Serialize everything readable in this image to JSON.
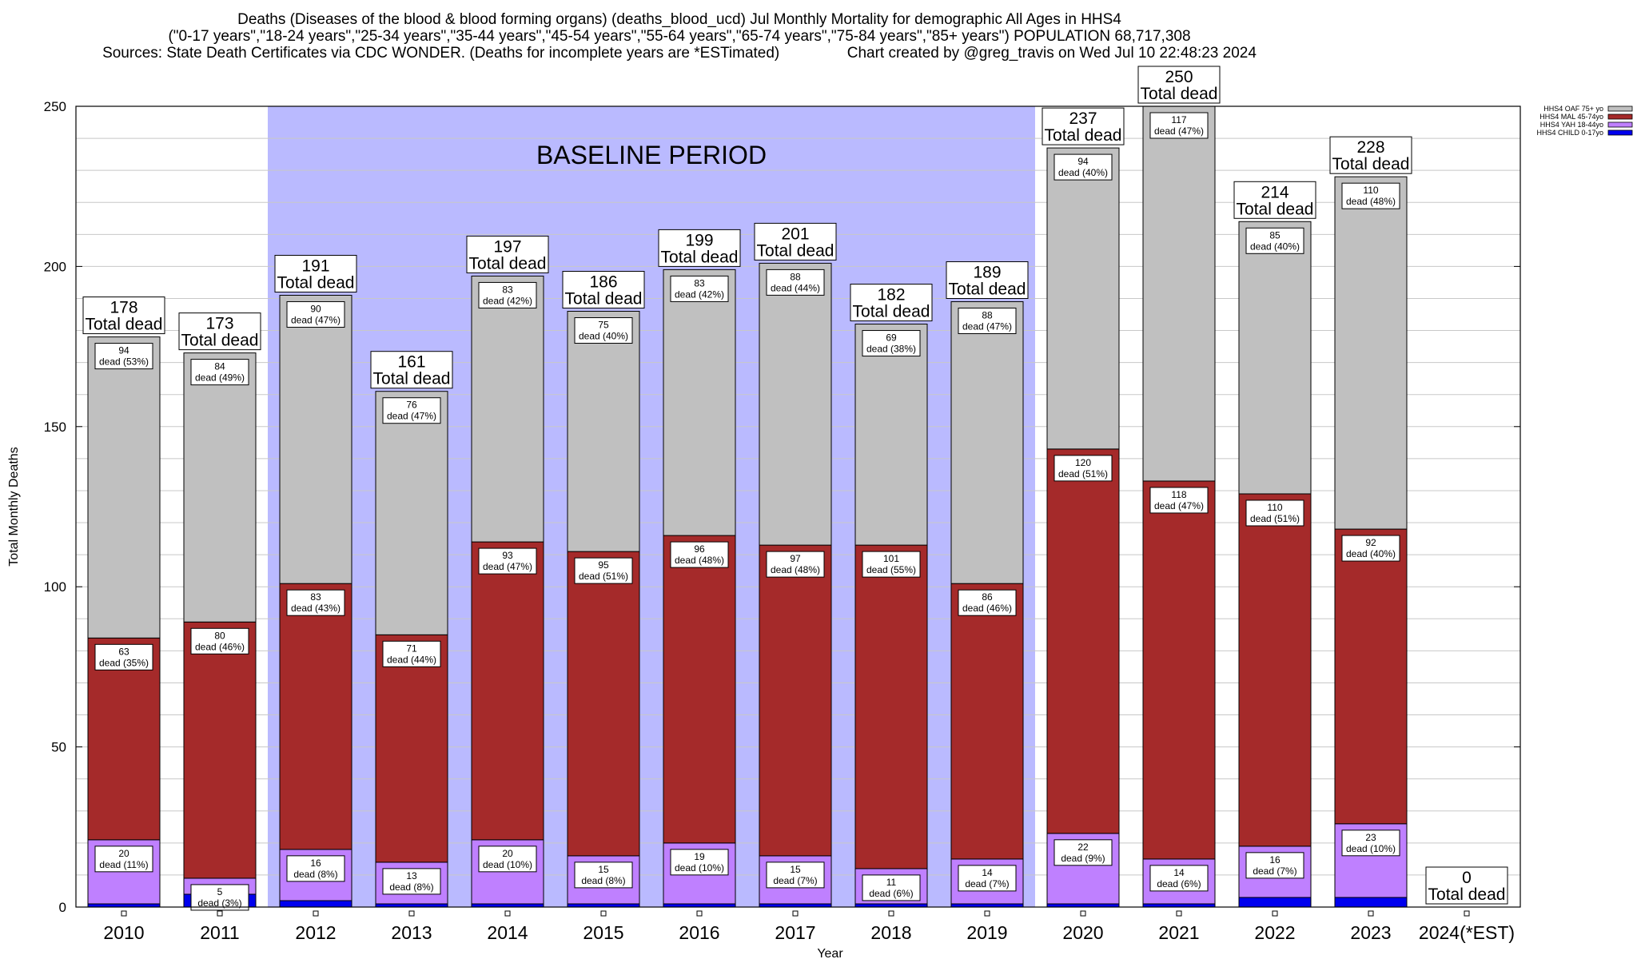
{
  "title_lines": [
    "Deaths (Diseases of the blood & blood forming organs) (deaths_blood_ucd) Jul Monthly Mortality for demographic All Ages in HHS4",
    "(\"0-17 years\",\"18-24 years\",\"25-34 years\",\"35-44 years\",\"45-54 years\",\"55-64 years\",\"65-74 years\",\"75-84 years\",\"85+ years\") POPULATION 68,717,308",
    "Sources: State Death Certificates via CDC WONDER. (Deaths for incomplete years are *ESTimated)                Chart created by @greg_travis on Wed Jul 10 22:48:23 2024"
  ],
  "colors": {
    "plot_bg": "#ffffff",
    "baseline_bg": "#babaff",
    "grid": "#c8c8c8",
    "oaf": "#c0c0c0",
    "mal": "#a52a2a",
    "yah": "#bf80ff",
    "child": "#0000ee"
  },
  "chart_data": {
    "type": "bar",
    "stacked": true,
    "xlabel": "Year",
    "ylabel": "Total Monthly Deaths",
    "ylim": [
      0,
      250
    ],
    "yticks": [
      0,
      50,
      100,
      150,
      200,
      250
    ],
    "grid": true,
    "legend_position": "top-right",
    "baseline_label": "BASELINE PERIOD",
    "baseline_range": [
      "2012",
      "2019"
    ],
    "categories": [
      "2010",
      "2011",
      "2012",
      "2013",
      "2014",
      "2015",
      "2016",
      "2017",
      "2018",
      "2019",
      "2020",
      "2021",
      "2022",
      "2023",
      "2024(*EST)"
    ],
    "series": [
      {
        "name": "HHS4 CHILD 0-17yo",
        "color_key": "child",
        "values": [
          1,
          4,
          2,
          1,
          1,
          1,
          1,
          1,
          1,
          1,
          1,
          1,
          3,
          3,
          0
        ]
      },
      {
        "name": "HHS4 YAH 18-44yo",
        "color_key": "yah",
        "values": [
          20,
          5,
          16,
          13,
          20,
          15,
          19,
          15,
          11,
          14,
          22,
          14,
          16,
          23,
          0
        ]
      },
      {
        "name": "HHS4 MAL 45-74yo",
        "color_key": "mal",
        "values": [
          63,
          80,
          83,
          71,
          93,
          95,
          96,
          97,
          101,
          86,
          120,
          118,
          110,
          92,
          0
        ]
      },
      {
        "name": "HHS4 OAF 75+ yo",
        "color_key": "oaf",
        "values": [
          94,
          84,
          90,
          76,
          83,
          75,
          83,
          88,
          69,
          88,
          94,
          117,
          85,
          110,
          0
        ]
      }
    ],
    "segment_labels": {
      "yah": [
        "20\ndead (11%)",
        "5\ndead (3%)",
        "16\ndead (8%)",
        "13\ndead (8%)",
        "20\ndead (10%)",
        "15\ndead (8%)",
        "19\ndead (10%)",
        "15\ndead (7%)",
        "11\ndead (6%)",
        "14\ndead (7%)",
        "22\ndead (9%)",
        "14\ndead (6%)",
        "16\ndead (7%)",
        "23\ndead (10%)",
        ""
      ],
      "mal": [
        "63\ndead (35%)",
        "80\ndead (46%)",
        "83\ndead (43%)",
        "71\ndead (44%)",
        "93\ndead (47%)",
        "95\ndead (51%)",
        "96\ndead (48%)",
        "97\ndead (48%)",
        "101\ndead (55%)",
        "86\ndead (46%)",
        "120\ndead (51%)",
        "118\ndead (47%)",
        "110\ndead (51%)",
        "92\ndead (40%)",
        ""
      ],
      "oaf": [
        "94\ndead (53%)",
        "84\ndead (49%)",
        "90\ndead (47%)",
        "76\ndead (47%)",
        "83\ndead (42%)",
        "75\ndead (40%)",
        "83\ndead (42%)",
        "88\ndead (44%)",
        "69\ndead (38%)",
        "88\ndead (47%)",
        "94\ndead (40%)",
        "117\ndead (47%)",
        "85\ndead (40%)",
        "110\ndead (48%)",
        ""
      ]
    },
    "totals": [
      178,
      173,
      191,
      161,
      197,
      186,
      199,
      201,
      182,
      189,
      237,
      250,
      214,
      228,
      0
    ],
    "total_suffix": "Total dead"
  }
}
